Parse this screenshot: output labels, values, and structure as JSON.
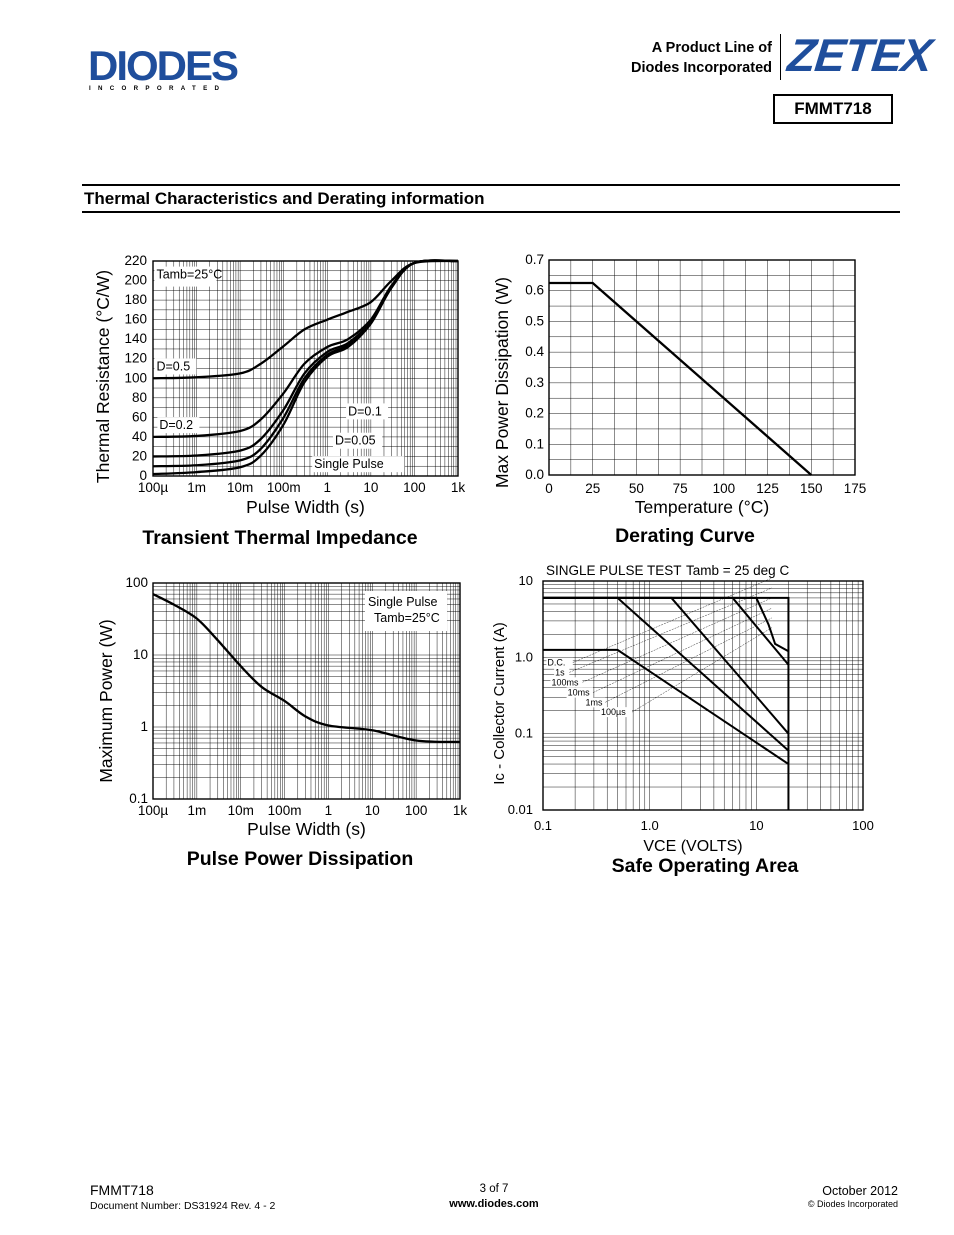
{
  "header": {
    "logo_text": "DIODES",
    "logo_sub": "INCORPORATED",
    "product_line_1": "A Product Line of",
    "product_line_2": "Diodes Incorporated",
    "brand": "ZETEX",
    "part_number": "FMMT718"
  },
  "section_title": "Thermal Characteristics and Derating information",
  "footer": {
    "part": "FMMT718",
    "doc_number": "Document Number:  DS31924 Rev. 4 - 2",
    "page": "3 of 7",
    "website": "www.diodes.com",
    "date": "October 2012",
    "copyright": "© Diodes Incorporated"
  },
  "chart_data": [
    {
      "type": "line",
      "caption": "Transient Thermal Impedance",
      "xlabel": "Pulse Width (s)",
      "ylabel": "Thermal Resistance (°C/W)",
      "x_scale": "log",
      "xlim": [
        0.0001,
        1000
      ],
      "ylim": [
        0,
        220
      ],
      "x_ticks": [
        "100µ",
        "1m",
        "10m",
        "100m",
        "1",
        "10",
        "100",
        "1k"
      ],
      "y_ticks": [
        "0",
        "20",
        "40",
        "60",
        "80",
        "100",
        "120",
        "140",
        "160",
        "180",
        "200",
        "220"
      ],
      "annotation": "Tamb=25°C",
      "series": [
        {
          "name": "D=0.5",
          "x": [
            0.0001,
            0.001,
            0.01,
            0.03,
            0.1,
            0.3,
            1,
            3,
            10,
            30,
            100,
            1000
          ],
          "y": [
            100,
            101,
            105,
            115,
            133,
            150,
            160,
            168,
            178,
            200,
            218,
            220
          ]
        },
        {
          "name": "D=0.2",
          "x": [
            0.0001,
            0.001,
            0.01,
            0.03,
            0.1,
            0.3,
            1,
            3,
            10,
            30,
            100,
            1000
          ],
          "y": [
            40,
            41,
            46,
            58,
            85,
            115,
            132,
            140,
            160,
            195,
            218,
            220
          ]
        },
        {
          "name": "D=0.1",
          "x": [
            0.0001,
            0.001,
            0.01,
            0.03,
            0.1,
            0.3,
            1,
            3,
            10,
            30,
            100,
            1000
          ],
          "y": [
            20,
            21,
            26,
            38,
            68,
            105,
            127,
            136,
            158,
            194,
            218,
            220
          ]
        },
        {
          "name": "D=0.05",
          "x": [
            0.0001,
            0.001,
            0.01,
            0.03,
            0.1,
            0.3,
            1,
            3,
            10,
            30,
            100,
            1000
          ],
          "y": [
            10,
            11,
            16,
            28,
            60,
            100,
            124,
            134,
            157,
            193,
            218,
            220
          ]
        },
        {
          "name": "Single Pulse",
          "x": [
            0.0001,
            0.001,
            0.01,
            0.03,
            0.1,
            0.3,
            1,
            3,
            10,
            30,
            100,
            1000
          ],
          "y": [
            2,
            4,
            9,
            21,
            53,
            96,
            122,
            132,
            156,
            193,
            218,
            220
          ]
        }
      ]
    },
    {
      "type": "line",
      "caption": "Derating Curve",
      "xlabel": "Temperature (°C)",
      "ylabel": "Max Power Dissipation (W)",
      "xlim": [
        0,
        175
      ],
      "ylim": [
        0,
        0.7
      ],
      "x_ticks": [
        "0",
        "25",
        "50",
        "75",
        "100",
        "125",
        "150",
        "175"
      ],
      "y_ticks": [
        "0.0",
        "0.1",
        "0.2",
        "0.3",
        "0.4",
        "0.5",
        "0.6",
        "0.7"
      ],
      "series": [
        {
          "x": [
            0,
            25,
            150
          ],
          "y": [
            0.625,
            0.625,
            0
          ]
        }
      ]
    },
    {
      "type": "line",
      "caption": "Pulse Power Dissipation",
      "xlabel": "Pulse Width (s)",
      "ylabel": "Maximum Power (W)",
      "x_scale": "log",
      "y_scale": "log",
      "xlim": [
        0.0001,
        1000
      ],
      "ylim": [
        0.1,
        100
      ],
      "x_ticks": [
        "100µ",
        "1m",
        "10m",
        "100m",
        "1",
        "10",
        "100",
        "1k"
      ],
      "y_ticks": [
        "0.1",
        "1",
        "10",
        "100"
      ],
      "annotation_1": "Single Pulse",
      "annotation_2": "Tamb=25°C",
      "series": [
        {
          "x": [
            0.0001,
            0.0003,
            0.001,
            0.003,
            0.01,
            0.03,
            0.1,
            0.3,
            1,
            10,
            100,
            1000
          ],
          "y": [
            70,
            50,
            32,
            16,
            7,
            3.6,
            2.3,
            1.4,
            1.05,
            0.9,
            0.65,
            0.62
          ]
        }
      ]
    },
    {
      "type": "line",
      "caption": "Safe Operating Area",
      "title": "SINGLE PULSE TEST",
      "title_temp": "Tamb = 25 deg C",
      "xlabel": "VCE (VOLTS)",
      "ylabel": "Ic - Collector Current (A)",
      "x_scale": "log",
      "y_scale": "log",
      "xlim": [
        0.1,
        100
      ],
      "ylim": [
        0.01,
        10
      ],
      "x_ticks": [
        "0.1",
        "1.0",
        "10",
        "100"
      ],
      "y_ticks": [
        "0.01",
        "0.1",
        "1.0",
        "10"
      ],
      "series": [
        {
          "name": "D.C.",
          "x": [
            0.1,
            0.5,
            20
          ],
          "y": [
            1.25,
            1.25,
            0.04
          ]
        },
        {
          "name": "1s",
          "x": [
            0.1,
            0.5,
            20
          ],
          "y": [
            6,
            6,
            0.06
          ]
        },
        {
          "name": "100ms",
          "x": [
            0.1,
            1.6,
            20
          ],
          "y": [
            6,
            6,
            0.1
          ]
        },
        {
          "name": "10ms",
          "x": [
            0.1,
            6,
            20
          ],
          "y": [
            6,
            6,
            0.8
          ]
        },
        {
          "name": "1ms",
          "x": [
            0.1,
            10,
            13,
            15,
            20
          ],
          "y": [
            6,
            6,
            2.7,
            1.5,
            1.2
          ]
        },
        {
          "name": "100µs",
          "x": [
            0.1,
            20,
            20
          ],
          "y": [
            6,
            6,
            0.01
          ]
        }
      ]
    }
  ]
}
